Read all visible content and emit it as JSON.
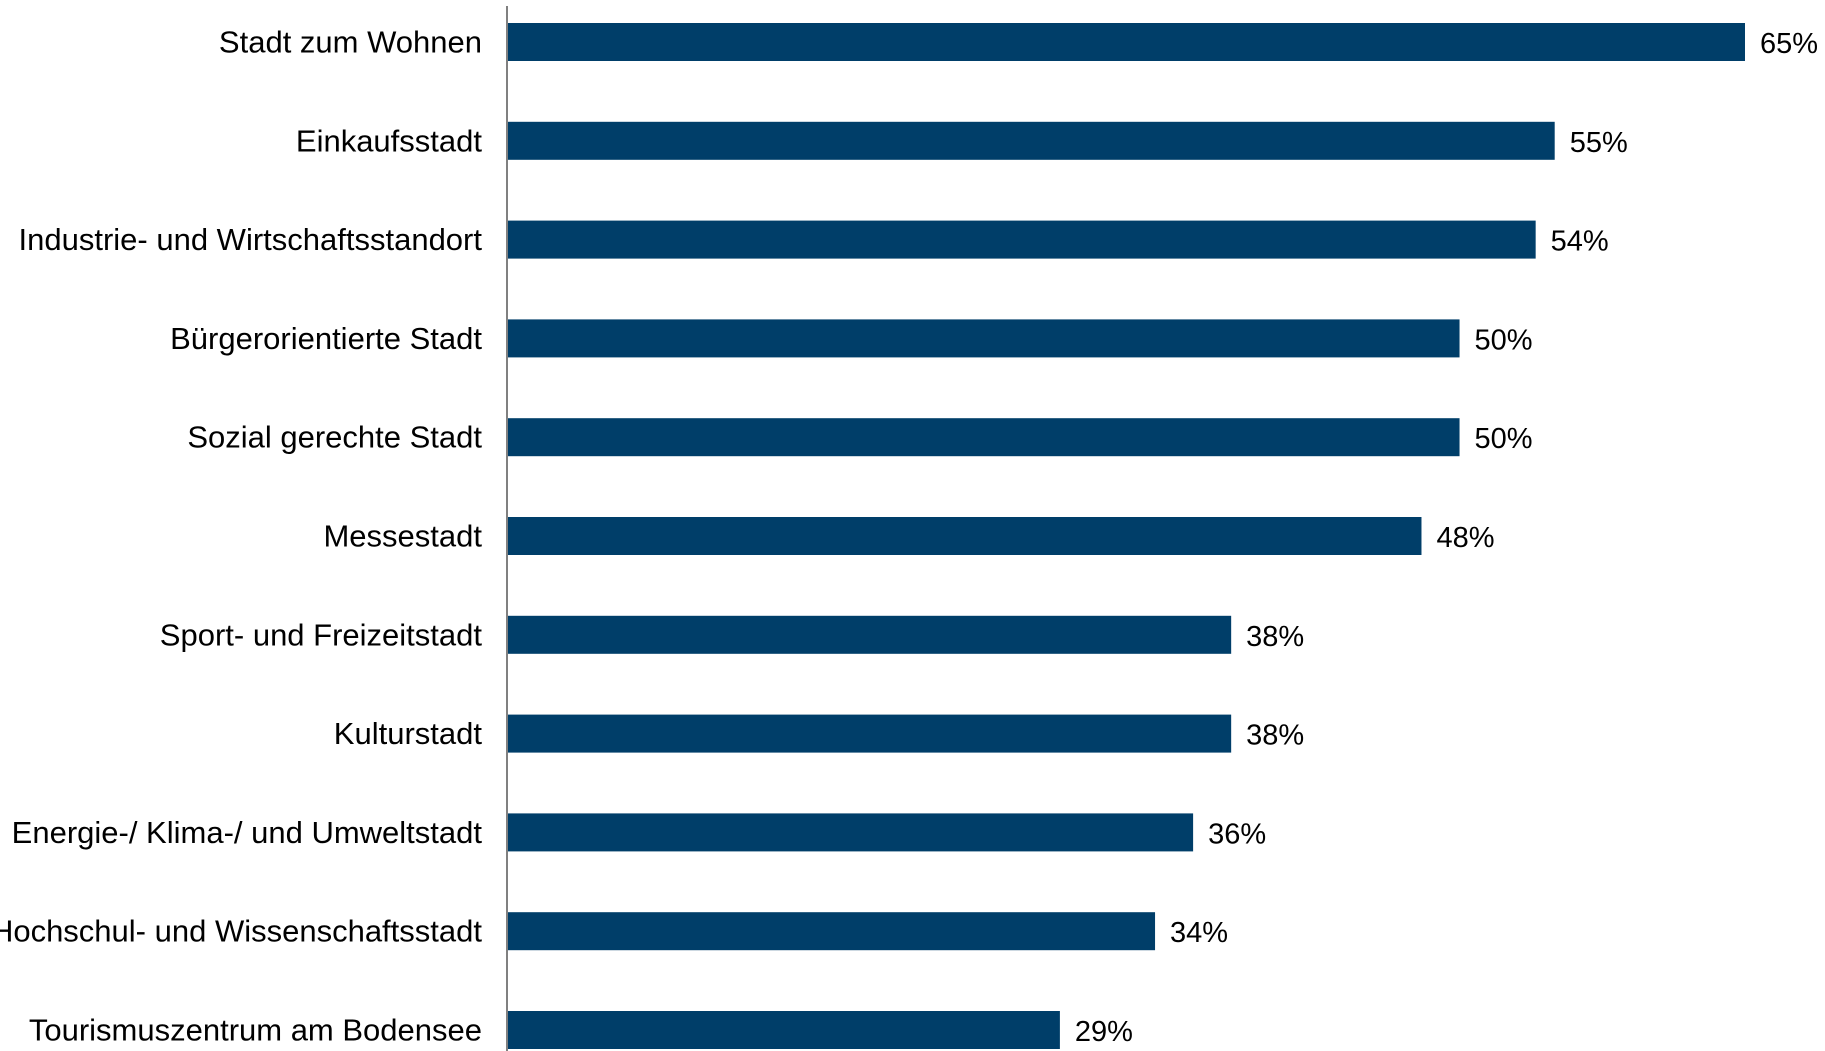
{
  "chart_data": {
    "type": "bar",
    "orientation": "horizontal",
    "categories": [
      "Stadt zum Wohnen",
      "Einkaufsstadt",
      "Industrie- und Wirtschaftsstandort",
      "Bürgerorientierte Stadt",
      "Sozial gerechte Stadt",
      "Messestadt",
      "Sport- und Freizeitstadt",
      "Kulturstadt",
      "Energie-/ Klima-/ und Umweltstadt",
      "Hochschul- und Wissenschaftsstadt",
      "Tourismuszentrum am Bodensee"
    ],
    "values": [
      65,
      55,
      54,
      50,
      50,
      48,
      38,
      38,
      36,
      34,
      29
    ],
    "value_labels": [
      "65%",
      "55%",
      "54%",
      "50%",
      "50%",
      "48%",
      "38%",
      "38%",
      "36%",
      "34%",
      "29%"
    ],
    "unit": "%",
    "title": "",
    "xlabel": "",
    "ylabel": "",
    "xlim": [
      0,
      65
    ],
    "grid": false,
    "legend": "none",
    "colors": {
      "bar": "#003E69",
      "axis": "#808080",
      "text": "#000000"
    }
  }
}
